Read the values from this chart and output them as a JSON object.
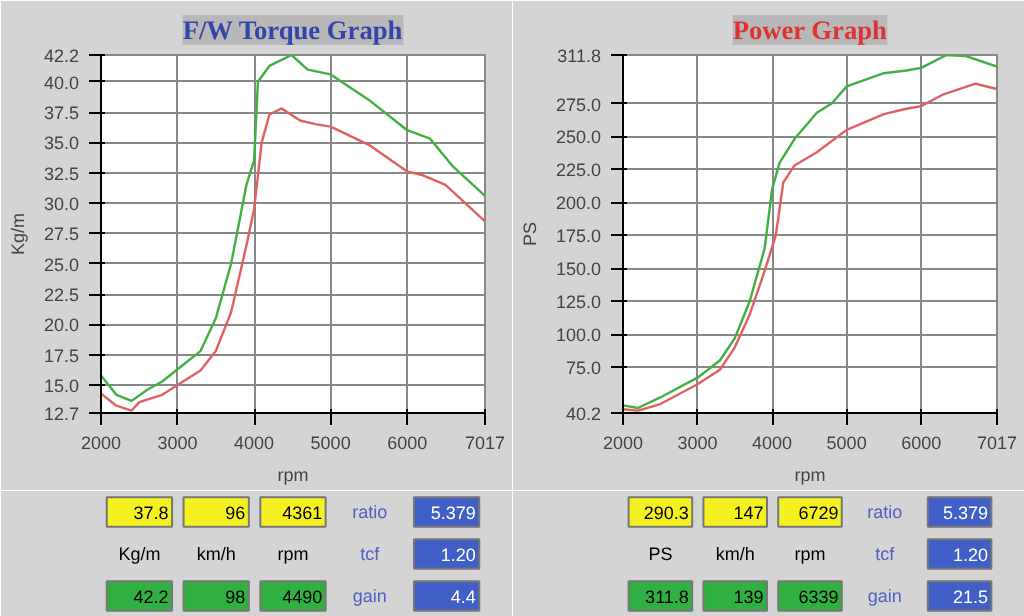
{
  "chart_data": [
    {
      "type": "line",
      "title": "F/W Torque Graph",
      "xlabel": "rpm",
      "ylabel": "Kg/m",
      "grid": true,
      "xlim": [
        2000,
        7017
      ],
      "xticks": [
        2000,
        3000,
        4000,
        5000,
        6000,
        7017
      ],
      "ylim": [
        12.7,
        42.2
      ],
      "yticks": [
        12.7,
        {
          "value": 15,
          "label": "15.0"
        },
        17.5,
        {
          "value": 20,
          "label": "20.0"
        },
        22.5,
        {
          "value": 25,
          "label": "25.0"
        },
        27.5,
        {
          "value": 30,
          "label": "30.0"
        },
        32.5,
        {
          "value": 35,
          "label": "35.0"
        },
        37.5,
        {
          "value": 40,
          "label": "40.0"
        },
        42.2
      ],
      "series": [
        {
          "color": "#e06060",
          "x": [
            2000,
            2200,
            2400,
            2500,
            2800,
            3000,
            3300,
            3500,
            3700,
            3900,
            4000,
            4100,
            4200,
            4361,
            4600,
            4800,
            5000,
            5500,
            6000,
            6200,
            6500,
            7017
          ],
          "values": [
            14.3,
            13.3,
            12.9,
            13.6,
            14.2,
            15.0,
            16.2,
            17.8,
            21.0,
            26.5,
            29.5,
            35.0,
            37.3,
            37.8,
            36.8,
            36.5,
            36.3,
            34.8,
            32.6,
            32.3,
            31.5,
            28.5
          ]
        },
        {
          "color": "#40b040",
          "x": [
            2000,
            2200,
            2400,
            2600,
            2800,
            3000,
            3300,
            3500,
            3700,
            3900,
            4000,
            4050,
            4200,
            4490,
            4700,
            5000,
            5500,
            6000,
            6300,
            6600,
            7017
          ],
          "values": [
            15.8,
            14.2,
            13.7,
            14.6,
            15.3,
            16.3,
            17.8,
            20.5,
            25.0,
            31.5,
            33.5,
            40.0,
            41.3,
            42.2,
            41.0,
            40.6,
            38.5,
            36.0,
            35.3,
            33.0,
            30.6
          ]
        }
      ],
      "annotations": [
        "37.8",
        "96",
        "4361",
        "ratio",
        "5.379",
        "Kg/m",
        "km/h",
        "rpm",
        "tcf",
        "1.20",
        "42.2",
        "98",
        "4490",
        "gain",
        "4.4"
      ]
    },
    {
      "type": "line",
      "title": "Power Graph",
      "xlabel": "rpm",
      "ylabel": "PS",
      "grid": true,
      "xlim": [
        2000,
        7017
      ],
      "xticks": [
        2000,
        3000,
        4000,
        5000,
        6000,
        7017
      ],
      "ylim": [
        40.2,
        311.8
      ],
      "yticks": [
        40.2,
        {
          "value": 75,
          "label": "75.0"
        },
        {
          "value": 100,
          "label": "100.0"
        },
        {
          "value": 125,
          "label": "125.0"
        },
        {
          "value": 150,
          "label": "150.0"
        },
        {
          "value": 175,
          "label": "175.0"
        },
        {
          "value": 200,
          "label": "200.0"
        },
        {
          "value": 225,
          "label": "225.0"
        },
        {
          "value": 250,
          "label": "250.0"
        },
        {
          "value": 275,
          "label": "275.0"
        },
        311.8
      ],
      "series": [
        {
          "color": "#e06060",
          "x": [
            2000,
            2200,
            2500,
            3000,
            3300,
            3500,
            3700,
            3900,
            4050,
            4150,
            4300,
            4600,
            5000,
            5500,
            5800,
            6000,
            6300,
            6729,
            7017
          ],
          "values": [
            43,
            42,
            47,
            62,
            73,
            90,
            115,
            148,
            175,
            215,
            228,
            238,
            255,
            267,
            271,
            273,
            282,
            290,
            286
          ]
        },
        {
          "color": "#40b040",
          "x": [
            2000,
            2200,
            2500,
            3000,
            3300,
            3500,
            3700,
            3900,
            4000,
            4100,
            4300,
            4600,
            4800,
            5000,
            5500,
            5800,
            6000,
            6339,
            6600,
            7017
          ],
          "values": [
            46,
            44,
            52,
            67,
            80,
            97,
            125,
            165,
            210,
            230,
            248,
            268,
            275,
            288,
            298,
            300,
            302,
            311.8,
            311,
            303
          ]
        }
      ],
      "annotations": [
        "290.3",
        "147",
        "6729",
        "ratio",
        "5.379",
        "PS",
        "km/h",
        "rpm",
        "tcf",
        "1.20",
        "311.8",
        "139",
        "6339",
        "gain",
        "21.5"
      ]
    }
  ]
}
